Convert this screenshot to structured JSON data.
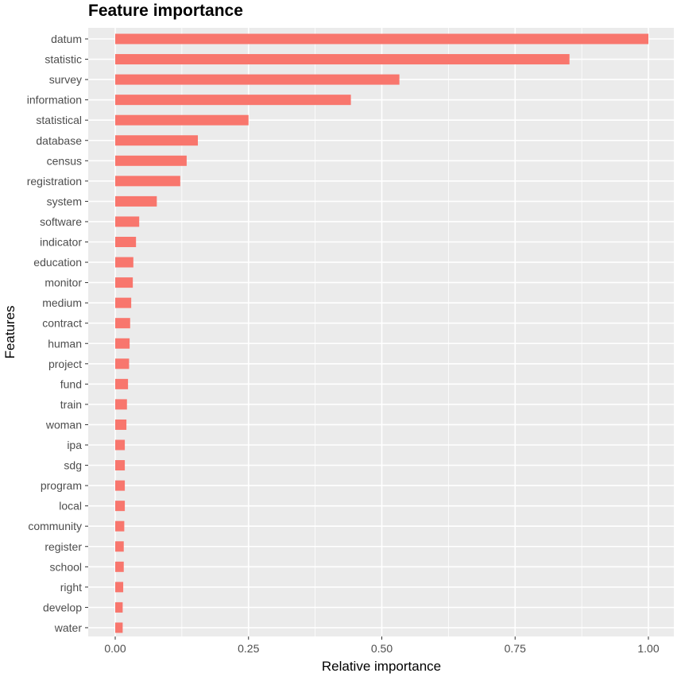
{
  "chart_data": {
    "type": "bar",
    "orientation": "horizontal",
    "title": "Feature importance",
    "xlabel": "Relative importance",
    "ylabel": "Features",
    "xlim": [
      0,
      1
    ],
    "x_ticks": [
      0.0,
      0.25,
      0.5,
      0.75,
      1.0
    ],
    "x_tick_labels": [
      "0.00",
      "0.25",
      "0.50",
      "0.75",
      "1.00"
    ],
    "grid": true,
    "legend": "none",
    "bar_color": "#f8766d",
    "panel_color": "#ebebeb",
    "categories": [
      "datum",
      "statistic",
      "survey",
      "information",
      "statistical",
      "database",
      "census",
      "registration",
      "system",
      "software",
      "indicator",
      "education",
      "monitor",
      "medium",
      "contract",
      "human",
      "project",
      "fund",
      "train",
      "woman",
      "ipa",
      "sdg",
      "program",
      "local",
      "community",
      "register",
      "school",
      "right",
      "develop",
      "water"
    ],
    "values": [
      1.0,
      0.852,
      0.533,
      0.442,
      0.25,
      0.155,
      0.134,
      0.122,
      0.078,
      0.045,
      0.039,
      0.034,
      0.033,
      0.03,
      0.028,
      0.027,
      0.026,
      0.024,
      0.022,
      0.021,
      0.018,
      0.018,
      0.018,
      0.018,
      0.017,
      0.016,
      0.016,
      0.015,
      0.014,
      0.014
    ]
  }
}
